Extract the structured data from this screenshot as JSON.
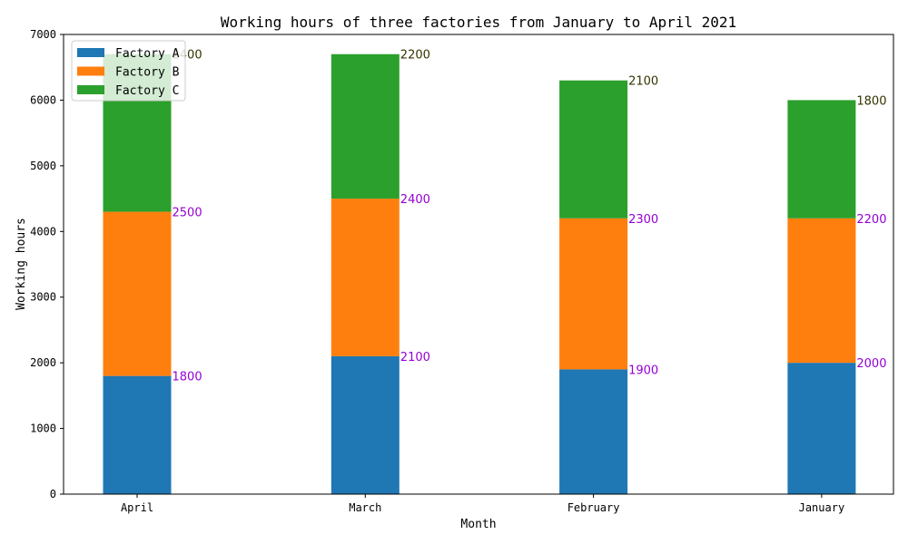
{
  "chart_data": {
    "type": "bar",
    "stacked": true,
    "title": "Working hours of three factories from January to April 2021",
    "xlabel": "Month",
    "ylabel": "Working hours",
    "categories": [
      "April",
      "March",
      "February",
      "January"
    ],
    "ylim": [
      0,
      7000
    ],
    "yticks": [
      0,
      1000,
      2000,
      3000,
      4000,
      5000,
      6000,
      7000
    ],
    "legend_position": "top-left",
    "grid": false,
    "series": [
      {
        "name": "Factory A",
        "values": [
          1800,
          2100,
          1900,
          2000
        ],
        "color": "#1f77b4",
        "label_color": "#9400d3"
      },
      {
        "name": "Factory B",
        "values": [
          2500,
          2400,
          2300,
          2200
        ],
        "color": "#ff7f0e",
        "label_color": "#9400d3"
      },
      {
        "name": "Factory C",
        "values": [
          2400,
          2200,
          2100,
          1800
        ],
        "color": "#2ca02c",
        "label_color": "#333300"
      }
    ]
  }
}
